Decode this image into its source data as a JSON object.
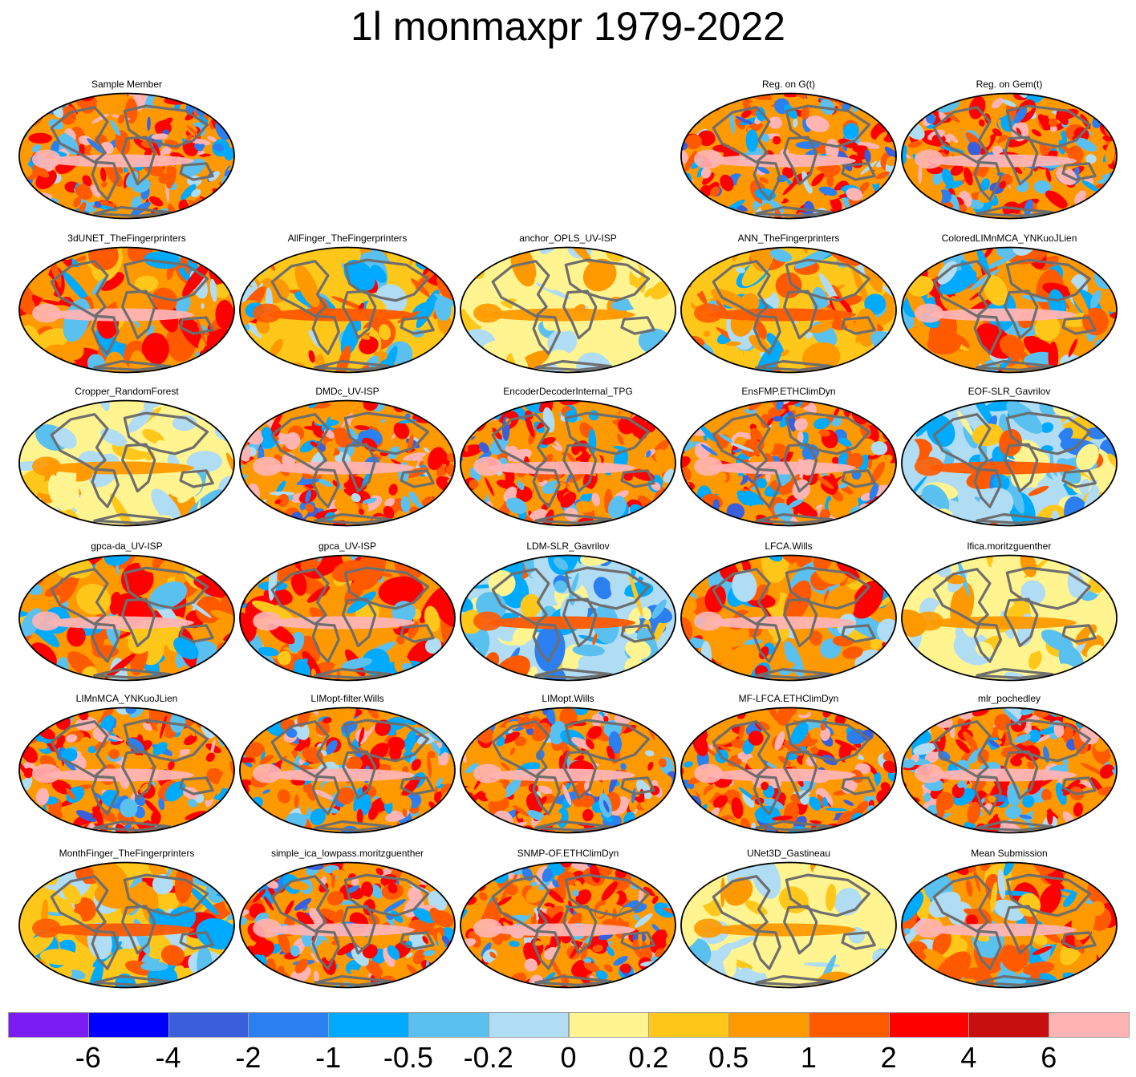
{
  "chart_data": {
    "type": "heatmap",
    "title": "1l monmaxpr 1979-2022",
    "projection": "robinson-like ellipse world maps",
    "panels": [
      {
        "title": "Sample Member",
        "row": 0,
        "col": 0,
        "style": "noisy"
      },
      {
        "title": "Reg. on G(t)",
        "row": 0,
        "col": 3,
        "style": "noisy"
      },
      {
        "title": "Reg. on Gem(t)",
        "row": 0,
        "col": 4,
        "style": "noisy"
      },
      {
        "title": "3dUNET_TheFingerprinters",
        "row": 1,
        "col": 0,
        "style": "enso"
      },
      {
        "title": "AllFinger_TheFingerprinters",
        "row": 1,
        "col": 1,
        "style": "smooth-mixed"
      },
      {
        "title": "anchor_OPLS_UV-ISP",
        "row": 1,
        "col": 2,
        "style": "weak"
      },
      {
        "title": "ANN_TheFingerprinters",
        "row": 1,
        "col": 3,
        "style": "smooth-mixed"
      },
      {
        "title": "ColoredLIMnMCA_YNKuoJLien",
        "row": 1,
        "col": 4,
        "style": "enso"
      },
      {
        "title": "Cropper_RandomForest",
        "row": 2,
        "col": 0,
        "style": "weak"
      },
      {
        "title": "DMDc_UV-ISP",
        "row": 2,
        "col": 1,
        "style": "noisy"
      },
      {
        "title": "EncoderDecoderInternal_TPG",
        "row": 2,
        "col": 2,
        "style": "noisy"
      },
      {
        "title": "EnsFMP.ETHClimDyn",
        "row": 2,
        "col": 3,
        "style": "noisy"
      },
      {
        "title": "EOF-SLR_Gavrilov",
        "row": 2,
        "col": 4,
        "style": "blue-enso"
      },
      {
        "title": "gpca-da_UV-ISP",
        "row": 3,
        "col": 0,
        "style": "enso"
      },
      {
        "title": "gpca_UV-ISP",
        "row": 3,
        "col": 1,
        "style": "enso"
      },
      {
        "title": "LDM-SLR_Gavrilov",
        "row": 3,
        "col": 2,
        "style": "blue-enso"
      },
      {
        "title": "LFCA.Wills",
        "row": 3,
        "col": 3,
        "style": "enso"
      },
      {
        "title": "lfica.moritzguenther",
        "row": 3,
        "col": 4,
        "style": "weak"
      },
      {
        "title": "LIMnMCA_YNKuoJLien",
        "row": 4,
        "col": 0,
        "style": "noisy"
      },
      {
        "title": "LIMopt-filter.Wills",
        "row": 4,
        "col": 1,
        "style": "noisy"
      },
      {
        "title": "LIMopt.Wills",
        "row": 4,
        "col": 2,
        "style": "noisy"
      },
      {
        "title": "MF-LFCA.ETHClimDyn",
        "row": 4,
        "col": 3,
        "style": "noisy"
      },
      {
        "title": "mlr_pochedley",
        "row": 4,
        "col": 4,
        "style": "noisy"
      },
      {
        "title": "MonthFinger_TheFingerprinters",
        "row": 5,
        "col": 0,
        "style": "smooth-mixed"
      },
      {
        "title": "simple_ica_lowpass.moritzguenther",
        "row": 5,
        "col": 1,
        "style": "noisy"
      },
      {
        "title": "SNMP-OF.ETHClimDyn",
        "row": 5,
        "col": 2,
        "style": "noisy"
      },
      {
        "title": "UNet3D_Gastineau",
        "row": 5,
        "col": 3,
        "style": "weak"
      },
      {
        "title": "Mean Submission",
        "row": 5,
        "col": 4,
        "style": "enso"
      }
    ],
    "colorbar": {
      "colors": [
        "#7b1cf2",
        "#0000ff",
        "#3a5fdc",
        "#2b7ff0",
        "#00aaff",
        "#5ac0f0",
        "#b0dcf4",
        "#fff490",
        "#ffc71a",
        "#ff9900",
        "#ff5a00",
        "#ff0000",
        "#c80f0f",
        "#ffb4b4"
      ],
      "tick_labels": [
        "-6",
        "-4",
        "-2",
        "-1",
        "-0.5",
        "-0.2",
        "0",
        "0.2",
        "0.5",
        "1",
        "2",
        "4",
        "6"
      ]
    }
  }
}
